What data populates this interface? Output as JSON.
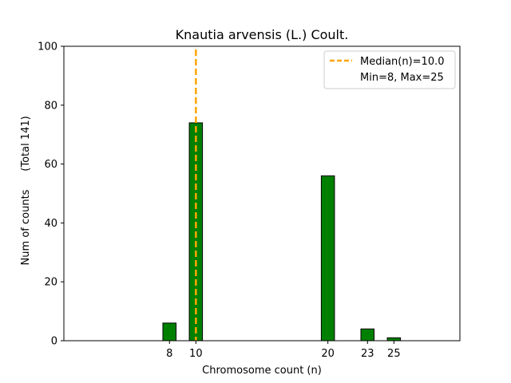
{
  "chart_data": {
    "type": "bar",
    "title": "Knautia arvensis (L.) Coult.",
    "xlabel": "Chromosome count (n)",
    "ylabel": "Num of counts",
    "ylabel_total": "(Total 141)",
    "xlim": [
      0,
      30
    ],
    "ylim": [
      0,
      100
    ],
    "xticks": [
      8,
      10,
      20,
      23,
      25
    ],
    "yticks": [
      0,
      20,
      40,
      60,
      80,
      100
    ],
    "bar_width": 1,
    "bars": [
      {
        "x": 8,
        "value": 6
      },
      {
        "x": 10,
        "value": 74
      },
      {
        "x": 20,
        "value": 56
      },
      {
        "x": 23,
        "value": 4
      },
      {
        "x": 25,
        "value": 1
      }
    ],
    "bar_color": "#008000",
    "median": 10.0,
    "median_color": "#FFA500",
    "legend": {
      "position": "top-right",
      "median_label": "Median(n)=10.0",
      "range_label": "Min=8, Max=25"
    }
  }
}
